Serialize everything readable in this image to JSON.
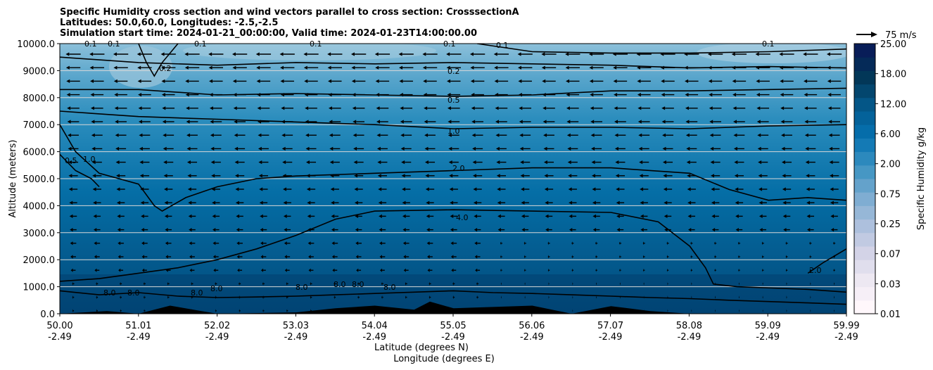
{
  "chart_data": {
    "type": "heatmap",
    "title_lines": [
      "Specific Humidity cross section and wind vectors parallel to cross section: CrosssectionA",
      "Latitudes: 50.0,60.0, Longitudes: -2.5,-2.5",
      "Simulation start time: 2024-01-21_00:00:00, Valid time: 2024-01-23T14:00:00.00"
    ],
    "xlabel_lat": "Latitude (degrees N)",
    "xlabel_lon": "Longitude (degrees E)",
    "ylabel": "Altitude (meters)",
    "x_ticks": [
      {
        "lat": "50.00",
        "lon": "-2.49"
      },
      {
        "lat": "51.01",
        "lon": "-2.49"
      },
      {
        "lat": "52.02",
        "lon": "-2.49"
      },
      {
        "lat": "53.03",
        "lon": "-2.49"
      },
      {
        "lat": "54.04",
        "lon": "-2.49"
      },
      {
        "lat": "55.05",
        "lon": "-2.49"
      },
      {
        "lat": "56.06",
        "lon": "-2.49"
      },
      {
        "lat": "57.07",
        "lon": "-2.49"
      },
      {
        "lat": "58.08",
        "lon": "-2.49"
      },
      {
        "lat": "59.09",
        "lon": "-2.49"
      },
      {
        "lat": "59.99",
        "lon": "-2.49"
      }
    ],
    "y_ticks": [
      "0.0",
      "1000.0",
      "2000.0",
      "3000.0",
      "4000.0",
      "5000.0",
      "6000.0",
      "7000.0",
      "8000.0",
      "9000.0",
      "10000.0"
    ],
    "ylim": [
      0,
      10000
    ],
    "xlim": [
      50.0,
      59.99
    ],
    "grid": "horizontal",
    "colorbar": {
      "label": "Specific Humidity g/kg",
      "tick_labels": [
        "0.01",
        "0.03",
        "0.07",
        "0.25",
        "0.75",
        "2.00",
        "6.00",
        "12.00",
        "18.00",
        "25.00"
      ],
      "colormap": "PuBu",
      "colors": [
        "#fff7fb",
        "#ece7f2",
        "#d0d1e6",
        "#a6bddb",
        "#74a9cf",
        "#3690c0",
        "#0570b0",
        "#045a8d",
        "#023858",
        "#081d58"
      ]
    },
    "quiver_key": {
      "label": "75 m/s",
      "speed": 75
    },
    "wind_direction": "westward (negative parallel component)",
    "contour_levels": [
      0.1,
      0.2,
      0.5,
      1.0,
      2.0,
      4.0,
      8.0
    ],
    "contour_label_values": [
      "0.1",
      "0.1",
      "0.1",
      "0.1",
      "0.1",
      "0.1",
      "0.2",
      "0.5",
      "1.0",
      "2.0",
      "4.0",
      "0.5",
      "1.0",
      "2.0",
      "8.0",
      "8.0",
      "8.0",
      "8.0",
      "8.0",
      "8.0",
      "8.0",
      "8.0",
      "0.2",
      "0.1"
    ],
    "contours": [
      {
        "level": 8.0,
        "points": [
          [
            50.0,
            850
          ],
          [
            50.5,
            700
          ],
          [
            51.0,
            780
          ],
          [
            51.5,
            650
          ],
          [
            52.0,
            600
          ],
          [
            52.5,
            620
          ],
          [
            53.0,
            650
          ],
          [
            53.5,
            700
          ],
          [
            54.0,
            750
          ],
          [
            54.5,
            800
          ],
          [
            55.0,
            850
          ],
          [
            55.5,
            780
          ],
          [
            56.0,
            750
          ],
          [
            56.5,
            700
          ],
          [
            57.0,
            650
          ],
          [
            57.5,
            600
          ],
          [
            58.0,
            560
          ],
          [
            58.5,
            500
          ],
          [
            59.0,
            450
          ],
          [
            59.5,
            400
          ],
          [
            59.99,
            350
          ]
        ]
      },
      {
        "level": 4.0,
        "points": [
          [
            50.0,
            1200
          ],
          [
            50.5,
            1300
          ],
          [
            51.0,
            1500
          ],
          [
            51.5,
            1700
          ],
          [
            52.0,
            2000
          ],
          [
            52.5,
            2400
          ],
          [
            53.0,
            2900
          ],
          [
            53.5,
            3500
          ],
          [
            54.0,
            3800
          ],
          [
            55.0,
            3850
          ],
          [
            56.0,
            3800
          ],
          [
            57.0,
            3750
          ],
          [
            57.6,
            3400
          ],
          [
            58.0,
            2500
          ],
          [
            58.2,
            1700
          ],
          [
            58.3,
            1100
          ],
          [
            58.6,
            1000
          ],
          [
            59.5,
            900
          ],
          [
            59.99,
            800
          ]
        ]
      },
      {
        "level": 2.0,
        "points": [
          [
            50.0,
            7000
          ],
          [
            50.1,
            6500
          ],
          [
            50.2,
            6000
          ],
          [
            50.5,
            5200
          ],
          [
            51.0,
            4800
          ],
          [
            51.2,
            4000
          ],
          [
            51.3,
            3800
          ],
          [
            51.6,
            4300
          ],
          [
            52.0,
            4700
          ],
          [
            52.5,
            5000
          ],
          [
            53.0,
            5100
          ],
          [
            54.0,
            5200
          ],
          [
            55.0,
            5300
          ],
          [
            56.0,
            5400
          ],
          [
            57.0,
            5400
          ],
          [
            58.0,
            5200
          ],
          [
            58.5,
            4600
          ],
          [
            59.0,
            4200
          ],
          [
            59.5,
            4300
          ],
          [
            59.99,
            4200
          ]
        ]
      },
      {
        "level": 2.0,
        "points": [
          [
            59.5,
            1500
          ],
          [
            59.7,
            1900
          ],
          [
            59.99,
            2400
          ]
        ]
      },
      {
        "level": 1.0,
        "points": [
          [
            50.0,
            5900
          ],
          [
            50.2,
            5300
          ],
          [
            50.4,
            5000
          ],
          [
            50.5,
            4700
          ]
        ]
      },
      {
        "level": 1.0,
        "points": [
          [
            50.0,
            7500
          ],
          [
            51.0,
            7300
          ],
          [
            52.0,
            7200
          ],
          [
            53.0,
            7100
          ],
          [
            54.0,
            7000
          ],
          [
            55.0,
            6850
          ],
          [
            56.0,
            6900
          ],
          [
            57.0,
            6900
          ],
          [
            58.0,
            6850
          ],
          [
            59.0,
            6950
          ],
          [
            59.99,
            7000
          ]
        ]
      },
      {
        "level": 0.5,
        "points": [
          [
            50.0,
            8300
          ],
          [
            51.0,
            8300
          ],
          [
            52.0,
            8100
          ],
          [
            53.0,
            8150
          ],
          [
            54.0,
            8100
          ],
          [
            55.0,
            8050
          ],
          [
            56.0,
            8100
          ],
          [
            57.0,
            8250
          ],
          [
            58.0,
            8250
          ],
          [
            59.0,
            8300
          ],
          [
            59.99,
            8350
          ]
        ]
      },
      {
        "level": 0.2,
        "points": [
          [
            50.0,
            9500
          ],
          [
            51.0,
            9300
          ],
          [
            52.0,
            9200
          ],
          [
            53.0,
            9300
          ],
          [
            54.0,
            9250
          ],
          [
            55.0,
            9300
          ],
          [
            56.0,
            9250
          ],
          [
            57.0,
            9200
          ],
          [
            58.0,
            9100
          ],
          [
            59.0,
            9150
          ],
          [
            59.99,
            9100
          ]
        ]
      },
      {
        "level": 0.1,
        "points": [
          [
            51.0,
            10000
          ],
          [
            51.1,
            9300
          ],
          [
            51.2,
            8800
          ],
          [
            51.3,
            9300
          ],
          [
            51.5,
            10000
          ]
        ]
      },
      {
        "level": 0.1,
        "points": [
          [
            55.3,
            10000
          ],
          [
            56.0,
            9700
          ],
          [
            57.0,
            9650
          ],
          [
            58.0,
            9650
          ],
          [
            59.0,
            9700
          ],
          [
            59.99,
            9800
          ]
        ]
      }
    ],
    "terrain": [
      [
        50.0,
        0
      ],
      [
        50.6,
        100
      ],
      [
        51.0,
        0
      ],
      [
        51.4,
        300
      ],
      [
        51.8,
        100
      ],
      [
        52.0,
        0
      ],
      [
        53.0,
        50
      ],
      [
        53.5,
        200
      ],
      [
        54.0,
        300
      ],
      [
        54.5,
        150
      ],
      [
        54.7,
        450
      ],
      [
        55.0,
        200
      ],
      [
        55.5,
        250
      ],
      [
        56.0,
        300
      ],
      [
        56.5,
        0
      ],
      [
        57.0,
        280
      ],
      [
        57.5,
        100
      ],
      [
        58.0,
        0
      ],
      [
        59.99,
        0
      ]
    ]
  }
}
